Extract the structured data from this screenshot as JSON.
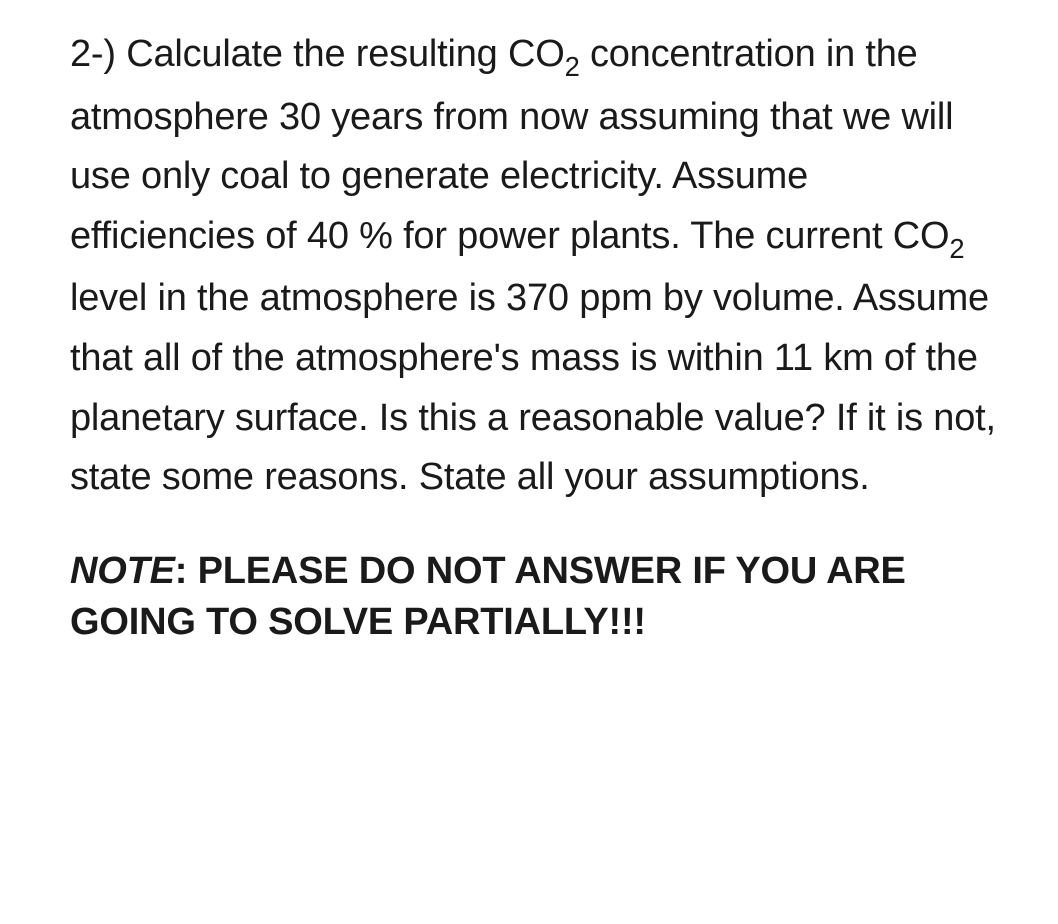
{
  "document": {
    "background_color": "#ffffff",
    "text_color": "#1a1a1a",
    "body_fontsize": 38,
    "body_lineheight": 1.57,
    "note_fontsize": 38,
    "note_lineheight": 1.35
  },
  "question": {
    "number": "2-)",
    "text_part1": "2-) Calculate the resulting CO",
    "sub1": "2",
    "text_part2": " concentration in the atmosphere 30 years from now assuming that we will use only coal to generate electricity. Assume efficiencies of 40 % for power plants. The current CO",
    "sub2": "2",
    "text_part3": " level in the atmosphere is 370 ppm by volume. Assume that all of the atmosphere's mass is within 11 km of the planetary surface. Is this a reasonable value? If it is not, state some reasons. State all your assumptions."
  },
  "note": {
    "label": "NOTE",
    "separator": ": ",
    "text": "PLEASE DO NOT ANSWER IF YOU ARE GOING TO SOLVE PARTIALLY!!!"
  }
}
